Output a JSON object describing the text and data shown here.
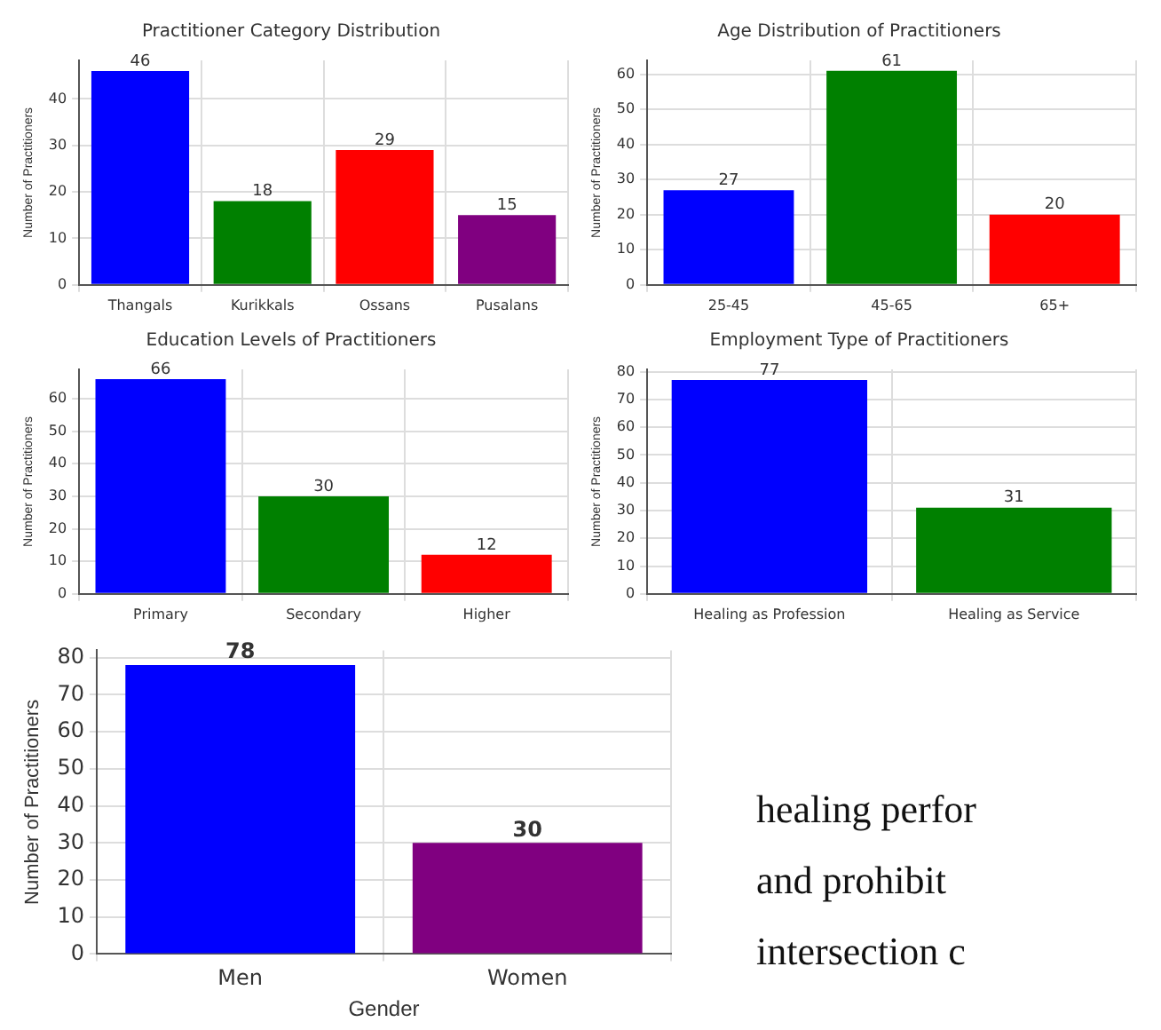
{
  "chart_data": [
    {
      "type": "bar",
      "title": "Practitioner Category Distribution",
      "ylabel": "Number of Practitioners",
      "categories": [
        "Thangals",
        "Kurikkals",
        "Ossans",
        "Pusalans"
      ],
      "values": [
        46,
        18,
        29,
        15
      ],
      "colors": [
        "#0000ff",
        "#008000",
        "#ff0000",
        "#800080"
      ],
      "ylim": [
        0,
        48.3
      ],
      "yticks": [
        0,
        10,
        20,
        30,
        40
      ],
      "grid": true,
      "data_labels": true
    },
    {
      "type": "bar",
      "title": "Age Distribution of Practitioners",
      "ylabel": "Number of Practitioners",
      "categories": [
        "25-45",
        "45-65",
        "65+"
      ],
      "values": [
        27,
        61,
        20
      ],
      "colors": [
        "#0000ff",
        "#008000",
        "#ff0000"
      ],
      "ylim": [
        0,
        64
      ],
      "yticks": [
        0,
        10,
        20,
        30,
        40,
        50,
        60
      ],
      "grid": true,
      "data_labels": true
    },
    {
      "type": "bar",
      "title": "Education Levels of Practitioners",
      "ylabel": "Number of Practitioners",
      "categories": [
        "Primary",
        "Secondary",
        "Higher"
      ],
      "values": [
        66,
        30,
        12
      ],
      "colors": [
        "#0000ff",
        "#008000",
        "#ff0000"
      ],
      "ylim": [
        0,
        69
      ],
      "yticks": [
        0,
        10,
        20,
        30,
        40,
        50,
        60
      ],
      "grid": true,
      "data_labels": true
    },
    {
      "type": "bar",
      "title": "Employment Type of Practitioners",
      "ylabel": "Number of Practitioners",
      "categories": [
        "Healing as Profession",
        "Healing as Service"
      ],
      "values": [
        77,
        31
      ],
      "colors": [
        "#0000ff",
        "#008000"
      ],
      "ylim": [
        0,
        80.8
      ],
      "yticks": [
        0,
        10,
        20,
        30,
        40,
        50,
        60,
        70,
        80
      ],
      "grid": true,
      "data_labels": true
    },
    {
      "type": "bar",
      "xlabel": "Gender",
      "ylabel": "Number of Practitioners",
      "categories": [
        "Men",
        "Women"
      ],
      "values": [
        78,
        30
      ],
      "colors": [
        "#0000ff",
        "#800080"
      ],
      "ylim": [
        0,
        82
      ],
      "yticks": [
        0,
        10,
        20,
        30,
        40,
        50,
        60,
        70,
        80
      ],
      "grid": true,
      "data_labels": true
    },
    {
      "type": "other",
      "annotations": [
        "healing perfor",
        "and prohibit",
        "intersection c"
      ]
    }
  ]
}
